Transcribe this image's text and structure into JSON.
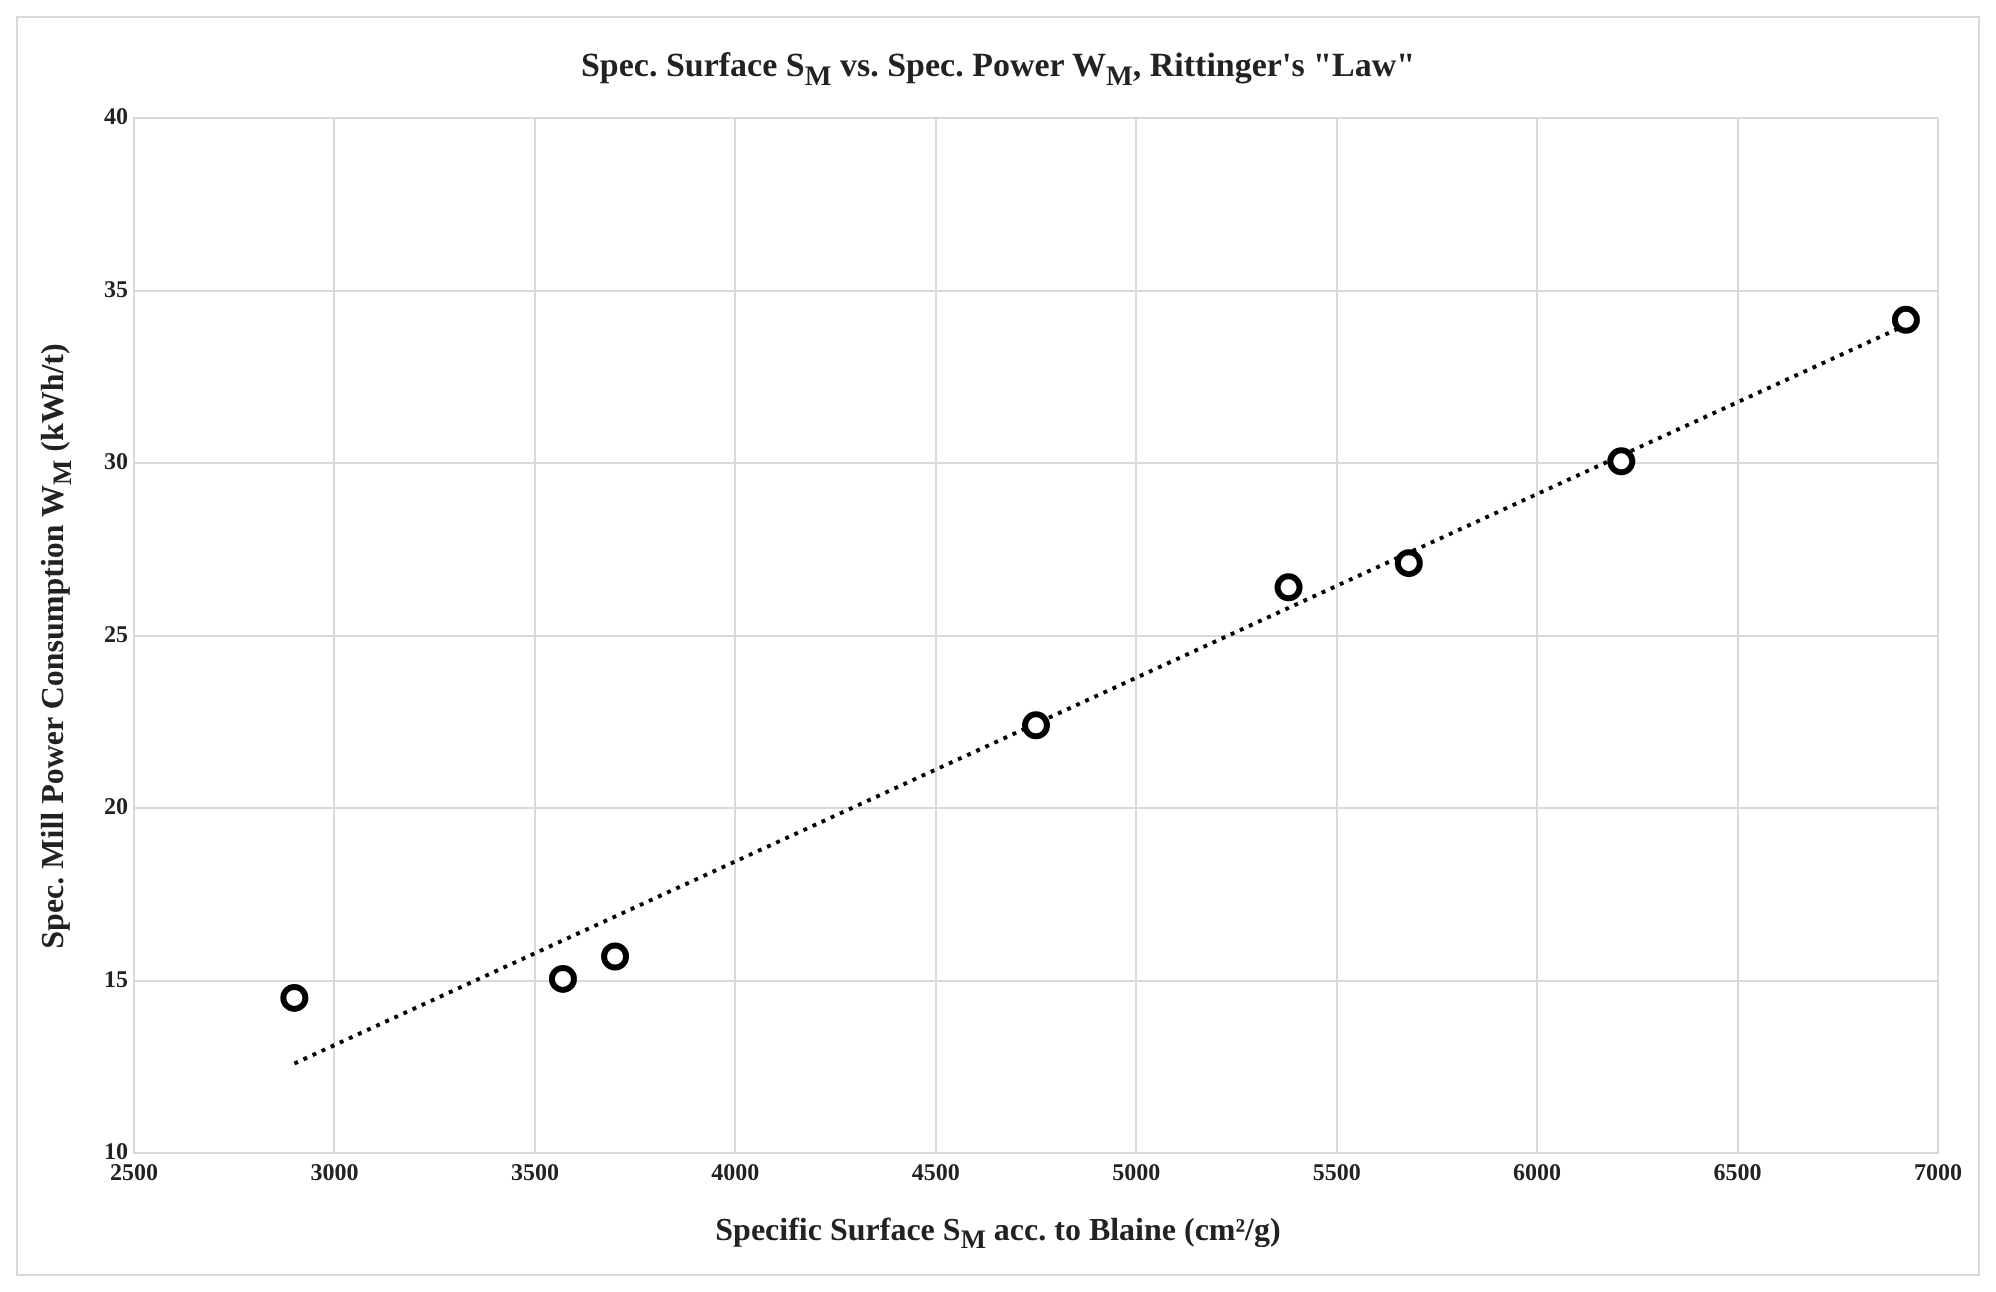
{
  "chart_data": {
    "type": "scatter",
    "title": "Spec. Surface S$_{M}$ vs. Spec. Power W$_{M}$, Rittinger's \"Law\"",
    "xlabel": "Specific Surface  S$_{M}$ acc. to Blaine (cm²/g)",
    "ylabel": "Spec. Mill Power Consumption  W$_{M}$  (kWh/t)",
    "x": [
      2900,
      3570,
      3700,
      4750,
      5380,
      5680,
      6210,
      6920
    ],
    "series": [
      {
        "color": "#000000",
        "values": [
          14.5,
          15.05,
          15.7,
          22.4,
          26.4,
          27.1,
          30.05,
          34.15
        ],
        "marker": "circle"
      },
      {
        "type": "line",
        "color": "#000000",
        "x": [
          2900,
          6920
        ],
        "values": [
          12.6,
          34.0
        ],
        "line_style": "dotted",
        "marker": "none"
      }
    ],
    "xlim": [
      2500,
      7000
    ],
    "xticks": [
      2500,
      3000,
      3500,
      4000,
      4500,
      5000,
      5500,
      6000,
      6500,
      7000
    ],
    "ylim": [
      10,
      40
    ],
    "yticks": [
      10,
      15,
      20,
      25,
      30,
      35,
      40
    ],
    "grid": true,
    "legend": false
  }
}
